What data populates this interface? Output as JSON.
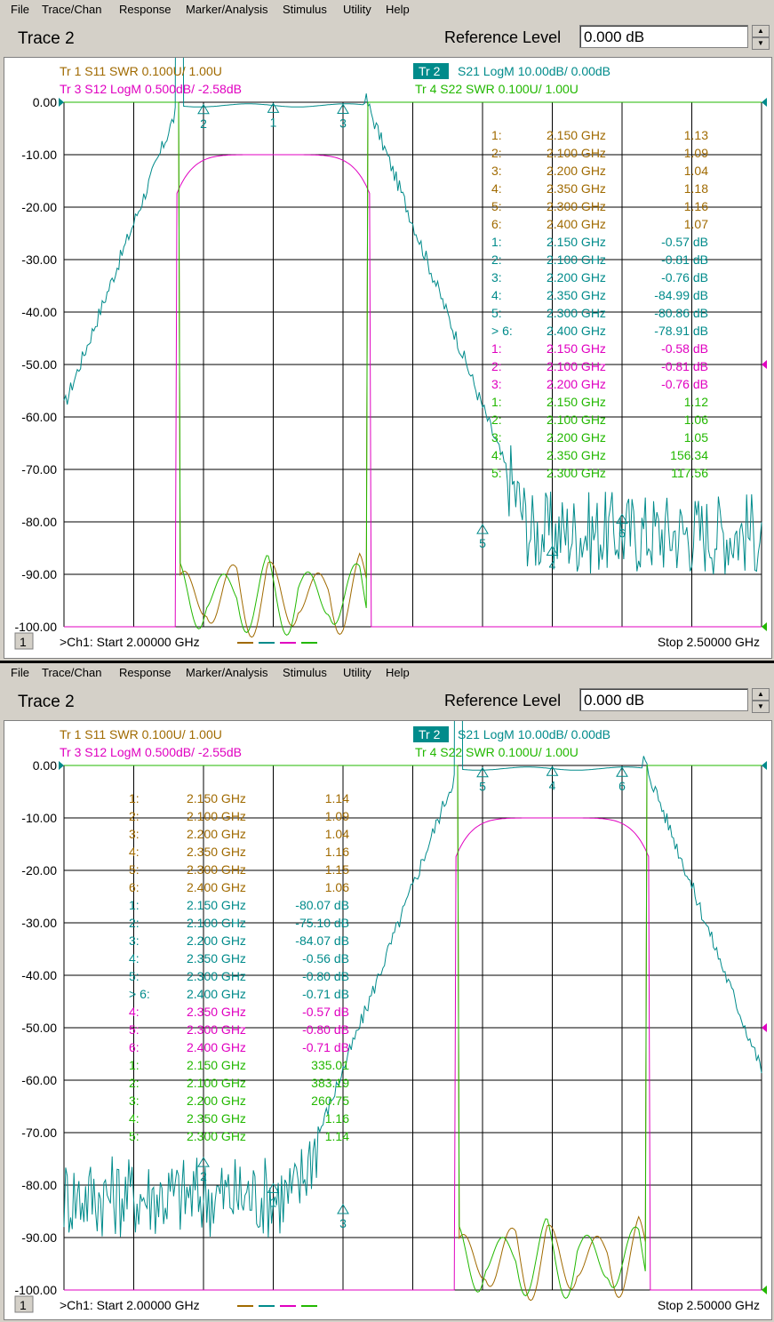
{
  "menu": [
    "File",
    "Trace/Chan",
    "Response",
    "Marker/Analysis",
    "Stimulus",
    "Utility",
    "Help"
  ],
  "panels": [
    {
      "title": "Trace 2",
      "ref_label": "Reference Level",
      "ref_value": "0.000 dB",
      "headers": [
        {
          "text": "Tr 1  S11 SWR 0.100U/  1.00U",
          "color": "#a06a00",
          "active": false
        },
        {
          "text": "Tr 2",
          "color": "#fff",
          "active": true
        },
        {
          "text": "S21 LogM 10.00dB/  0.00dB",
          "color": "#008b8b",
          "active": false
        },
        {
          "text": "Tr 3  S12 LogM 0.500dB/  -2.58dB",
          "color": "#e000c0",
          "active": false
        },
        {
          "text": "Tr 4  S22 SWR 0.100U/  1.00U",
          "color": "#22b800",
          "active": false
        }
      ],
      "y_ticks": [
        "0.00",
        "-10.00",
        "-20.00",
        "-30.00",
        "-40.00",
        "-50.00",
        "-60.00",
        "-70.00",
        "-80.00",
        "-90.00",
        "-100.00"
      ],
      "channel": "1",
      "start": ">Ch1: Start  2.00000 GHz",
      "stop": "Stop  2.50000 GHz",
      "markers": [
        {
          "c": "#a06a00",
          "n": "1:",
          "f": "2.150 GHz",
          "v": "1.13"
        },
        {
          "c": "#a06a00",
          "n": "2:",
          "f": "2.100 GHz",
          "v": "1.09"
        },
        {
          "c": "#a06a00",
          "n": "3:",
          "f": "2.200 GHz",
          "v": "1.04"
        },
        {
          "c": "#a06a00",
          "n": "4:",
          "f": "2.350 GHz",
          "v": "1.18"
        },
        {
          "c": "#a06a00",
          "n": "5:",
          "f": "2.300 GHz",
          "v": "1.16"
        },
        {
          "c": "#a06a00",
          "n": "6:",
          "f": "2.400 GHz",
          "v": "1.07"
        },
        {
          "c": "#008b8b",
          "n": "1:",
          "f": "2.150 GHz",
          "v": "-0.57 dB"
        },
        {
          "c": "#008b8b",
          "n": "2:",
          "f": "2.100 GHz",
          "v": "-0.81 dB"
        },
        {
          "c": "#008b8b",
          "n": "3:",
          "f": "2.200 GHz",
          "v": "-0.76 dB"
        },
        {
          "c": "#008b8b",
          "n": "4:",
          "f": "2.350 GHz",
          "v": "-84.99 dB"
        },
        {
          "c": "#008b8b",
          "n": "5:",
          "f": "2.300 GHz",
          "v": "-80.86 dB"
        },
        {
          "c": "#008b8b",
          "n": "> 6:",
          "f": "2.400 GHz",
          "v": "-78.91 dB"
        },
        {
          "c": "#e000c0",
          "n": "1:",
          "f": "2.150 GHz",
          "v": "-0.58 dB"
        },
        {
          "c": "#e000c0",
          "n": "2:",
          "f": "2.100 GHz",
          "v": "-0.81 dB"
        },
        {
          "c": "#e000c0",
          "n": "3:",
          "f": "2.200 GHz",
          "v": "-0.76 dB"
        },
        {
          "c": "#22b800",
          "n": "1:",
          "f": "2.150 GHz",
          "v": "1.12"
        },
        {
          "c": "#22b800",
          "n": "2:",
          "f": "2.100 GHz",
          "v": "1.06"
        },
        {
          "c": "#22b800",
          "n": "3:",
          "f": "2.200 GHz",
          "v": "1.05"
        },
        {
          "c": "#22b800",
          "n": "4:",
          "f": "2.350 GHz",
          "v": "156.34"
        },
        {
          "c": "#22b800",
          "n": "5:",
          "f": "2.300 GHz",
          "v": "117.56"
        }
      ]
    },
    {
      "title": "Trace 2",
      "ref_label": "Reference Level",
      "ref_value": "0.000 dB",
      "headers": [
        {
          "text": "Tr 1  S11 SWR 0.100U/  1.00U",
          "color": "#a06a00",
          "active": false
        },
        {
          "text": "Tr 2",
          "color": "#fff",
          "active": true
        },
        {
          "text": "S21 LogM 10.00dB/  0.00dB",
          "color": "#008b8b",
          "active": false
        },
        {
          "text": "Tr 3  S12 LogM 0.500dB/  -2.55dB",
          "color": "#e000c0",
          "active": false
        },
        {
          "text": "Tr 4  S22 SWR 0.100U/  1.00U",
          "color": "#22b800",
          "active": false
        }
      ],
      "y_ticks": [
        "0.00",
        "-10.00",
        "-20.00",
        "-30.00",
        "-40.00",
        "-50.00",
        "-60.00",
        "-70.00",
        "-80.00",
        "-90.00",
        "-100.00"
      ],
      "channel": "1",
      "start": ">Ch1: Start  2.00000 GHz",
      "stop": "Stop  2.50000 GHz",
      "markers": [
        {
          "c": "#a06a00",
          "n": "1:",
          "f": "2.150 GHz",
          "v": "1.14"
        },
        {
          "c": "#a06a00",
          "n": "2:",
          "f": "2.100 GHz",
          "v": "1.09"
        },
        {
          "c": "#a06a00",
          "n": "3:",
          "f": "2.200 GHz",
          "v": "1.04"
        },
        {
          "c": "#a06a00",
          "n": "4:",
          "f": "2.350 GHz",
          "v": "1.16"
        },
        {
          "c": "#a06a00",
          "n": "5:",
          "f": "2.300 GHz",
          "v": "1.15"
        },
        {
          "c": "#a06a00",
          "n": "6:",
          "f": "2.400 GHz",
          "v": "1.06"
        },
        {
          "c": "#008b8b",
          "n": "1:",
          "f": "2.150 GHz",
          "v": "-80.07 dB"
        },
        {
          "c": "#008b8b",
          "n": "2:",
          "f": "2.100 GHz",
          "v": "-75.10 dB"
        },
        {
          "c": "#008b8b",
          "n": "3:",
          "f": "2.200 GHz",
          "v": "-84.07 dB"
        },
        {
          "c": "#008b8b",
          "n": "4:",
          "f": "2.350 GHz",
          "v": "-0.56 dB"
        },
        {
          "c": "#008b8b",
          "n": "5:",
          "f": "2.300 GHz",
          "v": "-0.80 dB"
        },
        {
          "c": "#008b8b",
          "n": "> 6:",
          "f": "2.400 GHz",
          "v": "-0.71 dB"
        },
        {
          "c": "#e000c0",
          "n": "4:",
          "f": "2.350 GHz",
          "v": "-0.57 dB"
        },
        {
          "c": "#e000c0",
          "n": "5:",
          "f": "2.300 GHz",
          "v": "-0.80 dB"
        },
        {
          "c": "#e000c0",
          "n": "6:",
          "f": "2.400 GHz",
          "v": "-0.71 dB"
        },
        {
          "c": "#22b800",
          "n": "1:",
          "f": "2.150 GHz",
          "v": "335.01"
        },
        {
          "c": "#22b800",
          "n": "2:",
          "f": "2.100 GHz",
          "v": "383.19"
        },
        {
          "c": "#22b800",
          "n": "3:",
          "f": "2.200 GHz",
          "v": "260.75"
        },
        {
          "c": "#22b800",
          "n": "4:",
          "f": "2.350 GHz",
          "v": "1.16"
        },
        {
          "c": "#22b800",
          "n": "5:",
          "f": "2.300 GHz",
          "v": "1.14"
        }
      ]
    }
  ],
  "chart_data": [
    {
      "type": "line",
      "xlim": [
        2.0,
        2.5
      ],
      "ylim": [
        -100,
        0
      ],
      "xlabel": "",
      "ylabel": "",
      "passband": [
        2.08,
        2.22
      ],
      "marker_points": [
        {
          "label": "1",
          "x": 2.15,
          "y": -0.57
        },
        {
          "label": "2",
          "x": 2.1,
          "y": -0.81
        },
        {
          "label": "3",
          "x": 2.2,
          "y": -0.76
        },
        {
          "label": "4",
          "x": 2.35,
          "y": -84.99
        },
        {
          "label": "5",
          "x": 2.3,
          "y": -80.86
        },
        {
          "label": "6",
          "x": 2.4,
          "y": -78.91
        }
      ]
    },
    {
      "type": "line",
      "xlim": [
        2.0,
        2.5
      ],
      "ylim": [
        -100,
        0
      ],
      "xlabel": "",
      "ylabel": "",
      "passband": [
        2.28,
        2.42
      ],
      "marker_points": [
        {
          "label": "1",
          "x": 2.15,
          "y": -80.07
        },
        {
          "label": "2",
          "x": 2.1,
          "y": -75.1
        },
        {
          "label": "3",
          "x": 2.2,
          "y": -84.07
        },
        {
          "label": "4",
          "x": 2.35,
          "y": -0.56
        },
        {
          "label": "5",
          "x": 2.3,
          "y": -0.8
        },
        {
          "label": "6",
          "x": 2.4,
          "y": -0.71
        }
      ]
    }
  ]
}
